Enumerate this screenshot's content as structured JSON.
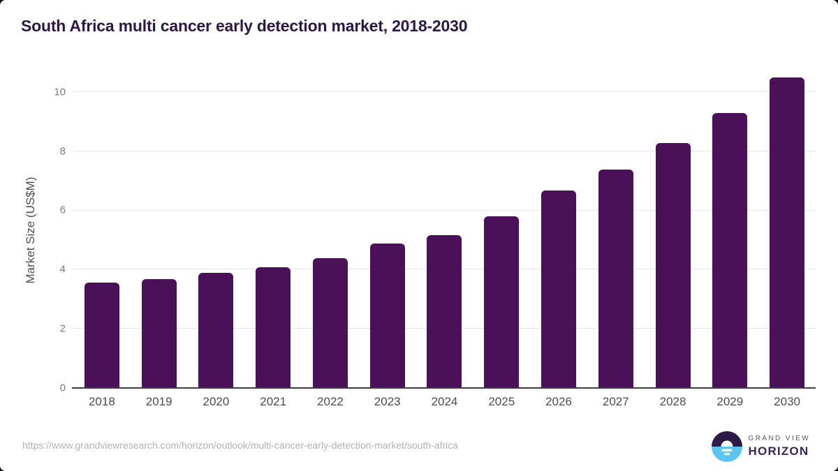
{
  "chart_data": {
    "type": "bar",
    "title": "South Africa multi cancer early detection market, 2018-2030",
    "categories": [
      "2018",
      "2019",
      "2020",
      "2021",
      "2022",
      "2023",
      "2024",
      "2025",
      "2026",
      "2027",
      "2028",
      "2029",
      "2030"
    ],
    "values": [
      3.56,
      3.68,
      3.89,
      4.08,
      4.38,
      4.87,
      5.17,
      5.79,
      6.68,
      7.37,
      8.28,
      9.28,
      10.49
    ],
    "xlabel": "",
    "ylabel": "Market Size (US$M)",
    "yticks": [
      0,
      2,
      4,
      6,
      8,
      10
    ],
    "ylim": [
      0,
      10.75
    ],
    "grid": true,
    "legend": "none",
    "bar_color": "#4b1158"
  },
  "footer": {
    "source_url": "https://www.grandviewresearch.com/horizon/outlook/multi-cancer-early-detection-market/south-africa",
    "brand_line1": "GRAND VIEW",
    "brand_line2": "HORIZON"
  },
  "colors": {
    "title": "#2d1744",
    "bar": "#4b1158",
    "grid": "#e4e4e4",
    "axis": "#3d3d3d",
    "tick_label": "#7b7b7b",
    "x_label": "#4c4c4c",
    "url": "#b4b2b4",
    "logo_dark": "#2e1a47",
    "logo_blue": "#5bc5f2"
  }
}
